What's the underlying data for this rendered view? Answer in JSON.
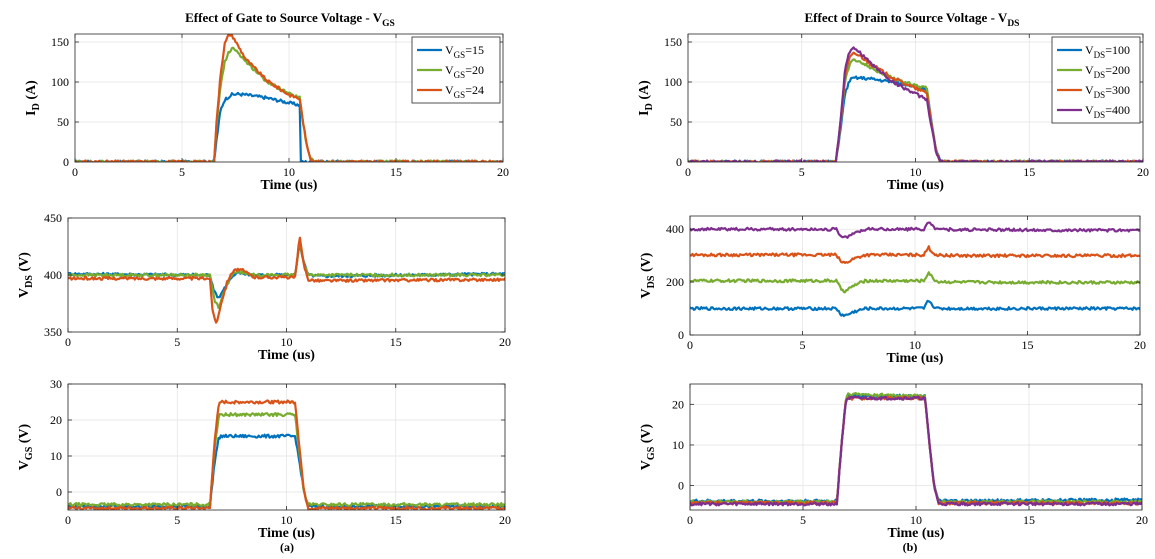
{
  "colors": {
    "blue": "#0072BD",
    "green": "#77AC30",
    "orange": "#D95319",
    "purple": "#7E2F8E"
  },
  "captions": {
    "a": "(a)",
    "b": "(b)"
  },
  "titles": {
    "a": {
      "main": "Effect of Gate to Source Voltage - V",
      "sub": "GS"
    },
    "b": {
      "main": "Effect of Drain to Source Voltage - V",
      "sub": "DS"
    }
  },
  "chart_data": [
    {
      "id": "a-id",
      "type": "line",
      "group": "a",
      "title": "Effect of Gate to Source Voltage - VGS",
      "xlabel": "Time (us)",
      "ylabel": {
        "main": "I",
        "sub": "D",
        "unit": " (A)"
      },
      "xlim": [
        0,
        20
      ],
      "ylim": [
        0,
        160
      ],
      "xticks": [
        0,
        5,
        10,
        15,
        20
      ],
      "yticks": [
        0,
        50,
        100,
        150
      ],
      "grid": true,
      "legend_position": "top-right",
      "series": [
        {
          "name": {
            "main": "V",
            "sub": "GS",
            "rest": "=15"
          },
          "color": "#0072BD",
          "x": [
            0,
            6.5,
            6.6,
            6.8,
            7.0,
            7.3,
            7.6,
            8.0,
            9.0,
            10.0,
            10.5,
            10.52,
            11,
            20
          ],
          "y": [
            0,
            0,
            25,
            65,
            78,
            84,
            85,
            84,
            80,
            74,
            71,
            0,
            0,
            0
          ]
        },
        {
          "name": {
            "main": "V",
            "sub": "GS",
            "rest": "=20"
          },
          "color": "#77AC30",
          "x": [
            0,
            6.5,
            6.6,
            6.8,
            7.0,
            7.2,
            7.4,
            7.6,
            8.0,
            9.0,
            10.0,
            10.5,
            10.6,
            10.8,
            11.0,
            11.2,
            20
          ],
          "y": [
            0,
            0,
            40,
            95,
            125,
            138,
            142,
            138,
            125,
            100,
            85,
            80,
            60,
            25,
            5,
            0,
            0
          ]
        },
        {
          "name": {
            "main": "V",
            "sub": "GS",
            "rest": "=24"
          },
          "color": "#D95319",
          "x": [
            0,
            6.5,
            6.6,
            6.8,
            7.0,
            7.2,
            7.4,
            7.6,
            8.0,
            9.0,
            10.0,
            10.5,
            10.6,
            10.8,
            11.0,
            11.2,
            20
          ],
          "y": [
            0,
            0,
            45,
            110,
            148,
            160,
            156,
            146,
            128,
            101,
            84,
            79,
            60,
            25,
            5,
            0,
            0
          ]
        }
      ]
    },
    {
      "id": "a-vds",
      "type": "line",
      "group": "a",
      "xlabel": "Time (us)",
      "ylabel": {
        "main": "V",
        "sub": "DS",
        "unit": " (V)"
      },
      "xlim": [
        0,
        20
      ],
      "ylim": [
        350,
        450
      ],
      "xticks": [
        0,
        5,
        10,
        15,
        20
      ],
      "yticks": [
        350,
        400,
        450
      ],
      "grid": true,
      "series": [
        {
          "color": "#0072BD",
          "x": [
            0,
            6.5,
            6.7,
            6.9,
            7.2,
            7.5,
            7.8,
            8.5,
            10.4,
            10.6,
            10.8,
            11.0,
            11.5,
            20
          ],
          "y": [
            401,
            400,
            385,
            380,
            390,
            398,
            402,
            400,
            400,
            428,
            410,
            400,
            399,
            401
          ]
        },
        {
          "color": "#77AC30",
          "x": [
            0,
            6.5,
            6.7,
            6.9,
            7.2,
            7.5,
            7.8,
            8.5,
            10.4,
            10.6,
            10.8,
            11.0,
            11.5,
            20
          ],
          "y": [
            400,
            400,
            378,
            372,
            388,
            400,
            403,
            400,
            400,
            430,
            410,
            400,
            400,
            400
          ]
        },
        {
          "color": "#D95319",
          "x": [
            0,
            6.5,
            6.6,
            6.8,
            7.0,
            7.3,
            7.6,
            8.0,
            8.5,
            10.4,
            10.6,
            10.8,
            11.0,
            11.5,
            20
          ],
          "y": [
            397,
            397,
            370,
            357,
            375,
            395,
            405,
            404,
            398,
            398,
            433,
            408,
            396,
            395,
            396
          ]
        }
      ]
    },
    {
      "id": "a-vgs",
      "type": "line",
      "group": "a",
      "xlabel": "Time (us)",
      "ylabel": {
        "main": "V",
        "sub": "GS",
        "unit": " (V)"
      },
      "xlim": [
        0,
        20
      ],
      "ylim": [
        -5,
        30
      ],
      "xticks": [
        0,
        5,
        10,
        15,
        20
      ],
      "yticks": [
        0,
        10,
        20,
        30
      ],
      "grid": true,
      "series": [
        {
          "color": "#0072BD",
          "x": [
            0,
            6.5,
            6.7,
            6.9,
            7.0,
            10.4,
            10.6,
            10.8,
            11.0,
            20
          ],
          "y": [
            -4,
            -4,
            8,
            15,
            15.5,
            15.5,
            8,
            0,
            -4,
            -4
          ]
        },
        {
          "color": "#77AC30",
          "x": [
            0,
            6.5,
            6.7,
            6.9,
            7.0,
            10.4,
            10.6,
            10.8,
            11.0,
            20
          ],
          "y": [
            -3.5,
            -3.5,
            12,
            21,
            21.5,
            21.5,
            10,
            0,
            -3.5,
            -3.5
          ]
        },
        {
          "color": "#D95319",
          "x": [
            0,
            6.5,
            6.7,
            6.9,
            7.0,
            10.4,
            10.6,
            10.8,
            11.0,
            20
          ],
          "y": [
            -4.5,
            -4.5,
            14,
            24,
            25,
            25,
            12,
            0,
            -4.5,
            -4.5
          ]
        }
      ]
    },
    {
      "id": "b-id",
      "type": "line",
      "group": "b",
      "title": "Effect of Drain to Source Voltage - VDS",
      "xlabel": "Time (us)",
      "ylabel": {
        "main": "I",
        "sub": "D",
        "unit": " (A)"
      },
      "xlim": [
        0,
        20
      ],
      "ylim": [
        0,
        160
      ],
      "xticks": [
        0,
        5,
        10,
        15,
        20
      ],
      "yticks": [
        0,
        50,
        100,
        150
      ],
      "grid": true,
      "legend_position": "top-right",
      "series": [
        {
          "name": {
            "main": "V",
            "sub": "DS",
            "rest": "=100"
          },
          "color": "#0072BD",
          "x": [
            0,
            6.5,
            6.7,
            6.9,
            7.1,
            7.3,
            7.6,
            8.0,
            9.0,
            10.0,
            10.5,
            10.7,
            10.9,
            11.1,
            20
          ],
          "y": [
            0,
            0,
            40,
            85,
            102,
            105,
            105,
            104,
            100,
            95,
            90,
            50,
            15,
            0,
            0
          ]
        },
        {
          "name": {
            "main": "V",
            "sub": "DS",
            "rest": "=200"
          },
          "color": "#77AC30",
          "x": [
            0,
            6.5,
            6.7,
            6.9,
            7.1,
            7.3,
            7.6,
            8.0,
            9.0,
            10.0,
            10.5,
            10.7,
            10.9,
            11.1,
            20
          ],
          "y": [
            0,
            0,
            45,
            100,
            122,
            128,
            125,
            118,
            105,
            95,
            92,
            50,
            15,
            0,
            0
          ]
        },
        {
          "name": {
            "main": "V",
            "sub": "DS",
            "rest": "=300"
          },
          "color": "#D95319",
          "x": [
            0,
            6.5,
            6.7,
            6.9,
            7.1,
            7.3,
            7.6,
            8.0,
            9.0,
            10.0,
            10.5,
            10.7,
            10.9,
            11.1,
            20
          ],
          "y": [
            0,
            0,
            48,
            108,
            130,
            136,
            132,
            123,
            105,
            92,
            86,
            48,
            14,
            0,
            0
          ]
        },
        {
          "name": {
            "main": "V",
            "sub": "DS",
            "rest": "=400"
          },
          "color": "#7E2F8E",
          "x": [
            0,
            6.5,
            6.7,
            6.9,
            7.1,
            7.3,
            7.6,
            8.0,
            9.0,
            10.0,
            10.5,
            10.7,
            10.9,
            11.1,
            20
          ],
          "y": [
            0,
            0,
            50,
            115,
            138,
            142,
            136,
            124,
            100,
            85,
            78,
            45,
            12,
            0,
            0
          ]
        }
      ]
    },
    {
      "id": "b-vds",
      "type": "line",
      "group": "b",
      "xlabel": "Time (us)",
      "ylabel": {
        "main": "V",
        "sub": "DS",
        "unit": " (V)"
      },
      "xlim": [
        0,
        20
      ],
      "ylim": [
        0,
        450
      ],
      "xticks": [
        0,
        5,
        10,
        15,
        20
      ],
      "yticks": [
        0,
        200,
        400
      ],
      "grid": true,
      "series": [
        {
          "color": "#0072BD",
          "x": [
            0,
            6.5,
            6.7,
            6.9,
            7.3,
            7.8,
            10.4,
            10.6,
            10.8,
            11.0,
            20
          ],
          "y": [
            100,
            100,
            78,
            73,
            88,
            100,
            100,
            132,
            110,
            100,
            100
          ]
        },
        {
          "color": "#77AC30",
          "x": [
            0,
            6.5,
            6.7,
            6.9,
            7.3,
            7.8,
            10.4,
            10.6,
            10.8,
            11.0,
            12.0,
            20
          ],
          "y": [
            205,
            205,
            175,
            165,
            188,
            205,
            205,
            238,
            213,
            202,
            200,
            198
          ]
        },
        {
          "color": "#D95319",
          "x": [
            0,
            6.5,
            6.7,
            6.9,
            7.3,
            7.8,
            10.4,
            10.6,
            10.8,
            11.0,
            12.0,
            20
          ],
          "y": [
            303,
            303,
            278,
            272,
            290,
            303,
            303,
            332,
            310,
            302,
            300,
            300
          ]
        },
        {
          "color": "#7E2F8E",
          "x": [
            0,
            6.5,
            6.7,
            6.9,
            7.3,
            7.8,
            10.4,
            10.6,
            10.8,
            11.0,
            12.0,
            20
          ],
          "y": [
            400,
            400,
            375,
            368,
            385,
            400,
            400,
            428,
            410,
            400,
            398,
            396
          ]
        }
      ]
    },
    {
      "id": "b-vgs",
      "type": "line",
      "group": "b",
      "xlabel": "Time (us)",
      "ylabel": {
        "main": "V",
        "sub": "GS",
        "unit": " (V)"
      },
      "xlim": [
        0,
        20
      ],
      "ylim": [
        -6,
        25
      ],
      "xticks": [
        0,
        5,
        10,
        15,
        20
      ],
      "yticks": [
        0,
        10,
        20
      ],
      "grid": true,
      "series": [
        {
          "color": "#0072BD",
          "x": [
            0,
            6.5,
            6.7,
            6.9,
            7.0,
            10.4,
            10.6,
            10.8,
            11.0,
            20
          ],
          "y": [
            -3.8,
            -3.8,
            10,
            21,
            22,
            22,
            10,
            0,
            -3.8,
            -3.5
          ]
        },
        {
          "color": "#77AC30",
          "x": [
            0,
            6.5,
            6.7,
            6.9,
            7.0,
            10.4,
            10.6,
            10.8,
            11.0,
            20
          ],
          "y": [
            -4,
            -4,
            10,
            21.5,
            22.5,
            22,
            10,
            0,
            -4,
            -4
          ]
        },
        {
          "color": "#D95319",
          "x": [
            0,
            6.5,
            6.7,
            6.9,
            7.0,
            10.4,
            10.6,
            10.8,
            11.0,
            20
          ],
          "y": [
            -4.3,
            -4.3,
            10,
            21,
            21.5,
            21.5,
            10,
            0,
            -4.3,
            -4.3
          ]
        },
        {
          "color": "#7E2F8E",
          "x": [
            0,
            6.5,
            6.7,
            6.9,
            7.0,
            10.4,
            10.6,
            10.8,
            11.0,
            20
          ],
          "y": [
            -4.5,
            -4.5,
            10,
            21,
            21.5,
            21.5,
            10,
            0,
            -4.5,
            -4.5
          ]
        }
      ]
    }
  ]
}
